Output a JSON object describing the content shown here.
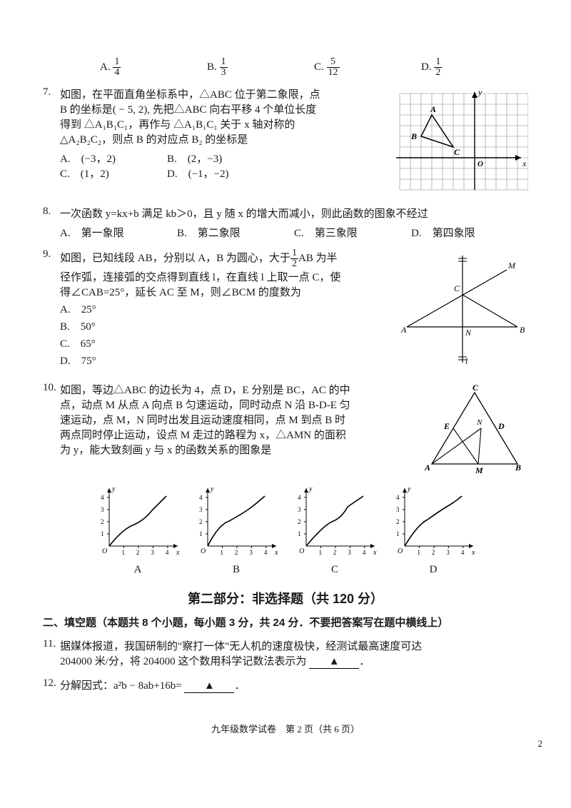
{
  "q6": {
    "options": {
      "A": {
        "label": "A.",
        "num": "1",
        "den": "4"
      },
      "B": {
        "label": "B.",
        "num": "1",
        "den": "3"
      },
      "C": {
        "label": "C.",
        "num": "5",
        "den": "12"
      },
      "D": {
        "label": "D.",
        "num": "1",
        "den": "2"
      }
    }
  },
  "q7": {
    "num": "7.",
    "line1": "如图，在平面直角坐标系中，△ABC 位于第二象限，点",
    "line2": "B 的坐标是( − 5, 2), 先把△ABC 向右平移 4 个单位长度",
    "line3": "得到 △A₁B₁C₁，再作与 △A₁B₁C₁ 关于 x 轴对称的",
    "line4": "△A₂B₂C₂，则点 B 的对应点 B₂ 的坐标是",
    "optA": "A.　(−3，2)",
    "optB": "B.　(2，−3)",
    "optC": "C.　(1，2)",
    "optD": "D.　(−1，−2)",
    "grid": {
      "labels": {
        "A": "A",
        "B": "B",
        "C": "C",
        "O": "O",
        "x": "x",
        "y": "y"
      },
      "points": {
        "A": [
          -4,
          4
        ],
        "B": [
          -5,
          2
        ],
        "C": [
          -2,
          1
        ]
      },
      "grid_color": "#6d6d6d",
      "axis_color": "#000000",
      "bg": "#ffffff"
    }
  },
  "q8": {
    "num": "8.",
    "text": "一次函数 y=kx+b 满足 kb＞0，且 y 随 x 的增大而减小，则此函数的图象不经过",
    "optA": "A.　第一象限",
    "optB": "B.　第二象限",
    "optC": "C.　第三象限",
    "optD": "D.　第四象限"
  },
  "q9": {
    "num": "9.",
    "line1": "如图，已知线段 AB，分别以 A，B 为圆心，大于",
    "fracnum": "1",
    "fracden": "2",
    "line1b": "AB 为半",
    "line2": "径作弧，连接弧的交点得到直线 l，在直线 l 上取一点 C，使",
    "line3": "得∠CAB=25°，延长 AC 至 M，则∠BCM 的度数为",
    "optA": "A.　25°",
    "optB": "B.　50°",
    "optC": "C.　65°",
    "optD": "D.　75°",
    "fig": {
      "labels": {
        "A": "A",
        "B": "B",
        "C": "C",
        "M": "M",
        "N": "N",
        "l": "l"
      },
      "stroke": "#000000"
    }
  },
  "q10": {
    "num": "10.",
    "line1": "如图，等边△ABC 的边长为 4，点 D，E 分别是 BC，AC 的中",
    "line2": "点，动点 M 从点 A 向点 B 匀速运动，同时动点 N 沿 B-D-E 匀",
    "line3": "速运动，点 M，N 同时出发且运动速度相同，点 M 到点 B 时",
    "line4": "两点同时停止运动，设点 M 走过的路程为 x，△AMN 的面积",
    "line5": "为 y，能大致刻画 y 与 x 的函数关系的图象是",
    "fig": {
      "labels": {
        "A": "A",
        "B": "B",
        "C": "C",
        "D": "D",
        "E": "E",
        "M": "M",
        "N": "N"
      },
      "stroke": "#000000"
    },
    "charts": {
      "xticks": [
        "1",
        "2",
        "3",
        "4"
      ],
      "yticks": [
        "1",
        "2",
        "3",
        "4"
      ],
      "xlabel": "x",
      "ylabel": "y",
      "axis_color": "#000000",
      "line_color": "#000000",
      "labels": {
        "A": "A",
        "B": "B",
        "C": "C",
        "D": "D"
      }
    }
  },
  "section2": {
    "title": "第二部分：非选择题（共 120 分）",
    "sub": "二、填空题（本题共 8 个小题，每小题 3 分，共 24 分．不要把答案写在题中横线上）"
  },
  "q11": {
    "num": "11.",
    "line1": "据媒体报道，我国研制的\"察打一体\"无人机的速度极快，经测试最高速度可达",
    "line2a": "204000 米/分，将 204000 这个数用科学记数法表示为",
    "blank": "▲",
    "end": "．"
  },
  "q12": {
    "num": "12.",
    "text": "分解因式：a²b − 8ab+16b=",
    "blank": "▲",
    "end": "．"
  },
  "footer": "九年级数学试卷　第 2 页（共 6 页）",
  "pagecorner": "2"
}
